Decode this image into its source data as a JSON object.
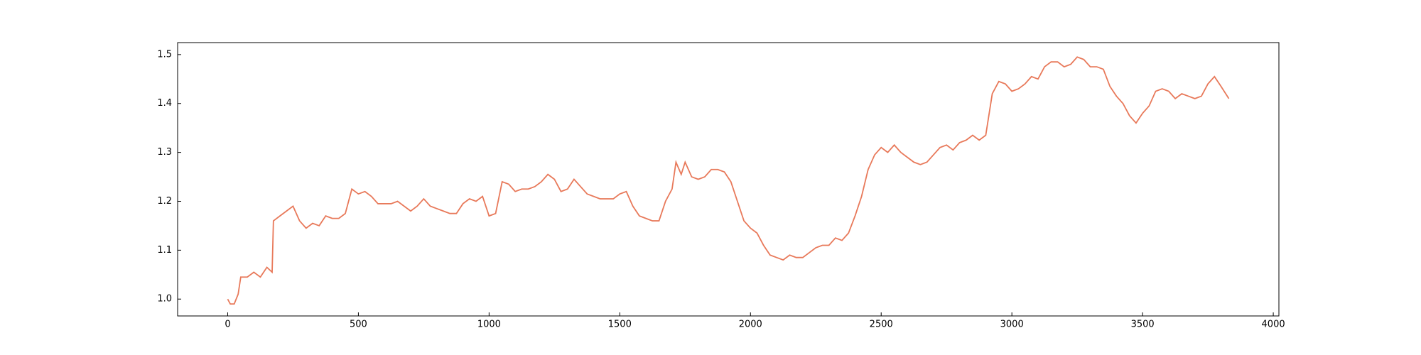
{
  "chart_data": {
    "type": "line",
    "x": [
      0,
      10,
      25,
      40,
      50,
      75,
      100,
      125,
      150,
      170,
      175,
      200,
      225,
      250,
      275,
      300,
      325,
      350,
      375,
      400,
      425,
      450,
      475,
      500,
      525,
      550,
      575,
      600,
      625,
      650,
      675,
      700,
      725,
      750,
      775,
      800,
      825,
      850,
      875,
      900,
      925,
      950,
      975,
      1000,
      1025,
      1050,
      1075,
      1100,
      1125,
      1150,
      1175,
      1200,
      1225,
      1250,
      1275,
      1300,
      1325,
      1350,
      1375,
      1400,
      1425,
      1450,
      1475,
      1500,
      1525,
      1550,
      1575,
      1600,
      1625,
      1650,
      1675,
      1700,
      1715,
      1735,
      1750,
      1775,
      1800,
      1825,
      1850,
      1875,
      1900,
      1925,
      1950,
      1975,
      2000,
      2025,
      2050,
      2075,
      2100,
      2125,
      2150,
      2175,
      2200,
      2225,
      2250,
      2275,
      2300,
      2325,
      2350,
      2375,
      2400,
      2425,
      2450,
      2475,
      2500,
      2525,
      2550,
      2575,
      2600,
      2625,
      2650,
      2675,
      2700,
      2725,
      2750,
      2775,
      2800,
      2825,
      2850,
      2875,
      2900,
      2925,
      2950,
      2975,
      3000,
      3025,
      3050,
      3075,
      3100,
      3125,
      3150,
      3175,
      3200,
      3225,
      3250,
      3275,
      3300,
      3325,
      3350,
      3375,
      3400,
      3425,
      3450,
      3475,
      3500,
      3525,
      3550,
      3575,
      3600,
      3625,
      3650,
      3675,
      3700,
      3725,
      3750,
      3775,
      3800,
      3830
    ],
    "values": [
      1.0,
      0.99,
      0.99,
      1.01,
      1.045,
      1.045,
      1.055,
      1.045,
      1.065,
      1.055,
      1.16,
      1.17,
      1.18,
      1.19,
      1.16,
      1.145,
      1.155,
      1.15,
      1.17,
      1.165,
      1.165,
      1.175,
      1.225,
      1.215,
      1.22,
      1.21,
      1.195,
      1.195,
      1.195,
      1.2,
      1.19,
      1.18,
      1.19,
      1.205,
      1.19,
      1.185,
      1.18,
      1.175,
      1.175,
      1.195,
      1.205,
      1.2,
      1.21,
      1.17,
      1.175,
      1.24,
      1.235,
      1.22,
      1.225,
      1.225,
      1.23,
      1.24,
      1.255,
      1.245,
      1.22,
      1.225,
      1.245,
      1.23,
      1.215,
      1.21,
      1.205,
      1.205,
      1.205,
      1.215,
      1.22,
      1.19,
      1.17,
      1.165,
      1.16,
      1.16,
      1.2,
      1.225,
      1.28,
      1.255,
      1.28,
      1.25,
      1.245,
      1.25,
      1.265,
      1.265,
      1.26,
      1.24,
      1.2,
      1.16,
      1.145,
      1.135,
      1.11,
      1.09,
      1.085,
      1.08,
      1.09,
      1.085,
      1.085,
      1.095,
      1.105,
      1.11,
      1.11,
      1.125,
      1.12,
      1.135,
      1.17,
      1.21,
      1.265,
      1.295,
      1.31,
      1.3,
      1.315,
      1.3,
      1.29,
      1.28,
      1.275,
      1.28,
      1.295,
      1.31,
      1.315,
      1.305,
      1.32,
      1.325,
      1.335,
      1.325,
      1.335,
      1.42,
      1.445,
      1.44,
      1.425,
      1.43,
      1.44,
      1.455,
      1.45,
      1.475,
      1.485,
      1.485,
      1.475,
      1.48,
      1.495,
      1.49,
      1.475,
      1.475,
      1.47,
      1.435,
      1.415,
      1.4,
      1.375,
      1.36,
      1.38,
      1.395,
      1.425,
      1.43,
      1.425,
      1.41,
      1.42,
      1.415,
      1.41,
      1.415,
      1.44,
      1.455,
      1.435,
      1.41
    ],
    "color": "#e8795a",
    "xlim": [
      -191.5,
      4021.5
    ],
    "ylim": [
      0.9655,
      1.5245
    ],
    "xticks": [
      0,
      500,
      1000,
      1500,
      2000,
      2500,
      3000,
      3500,
      4000
    ],
    "yticks": [
      {
        "value": 1.0,
        "label": "1.0"
      },
      1.1,
      1.2,
      1.3,
      1.4,
      1.5
    ]
  }
}
